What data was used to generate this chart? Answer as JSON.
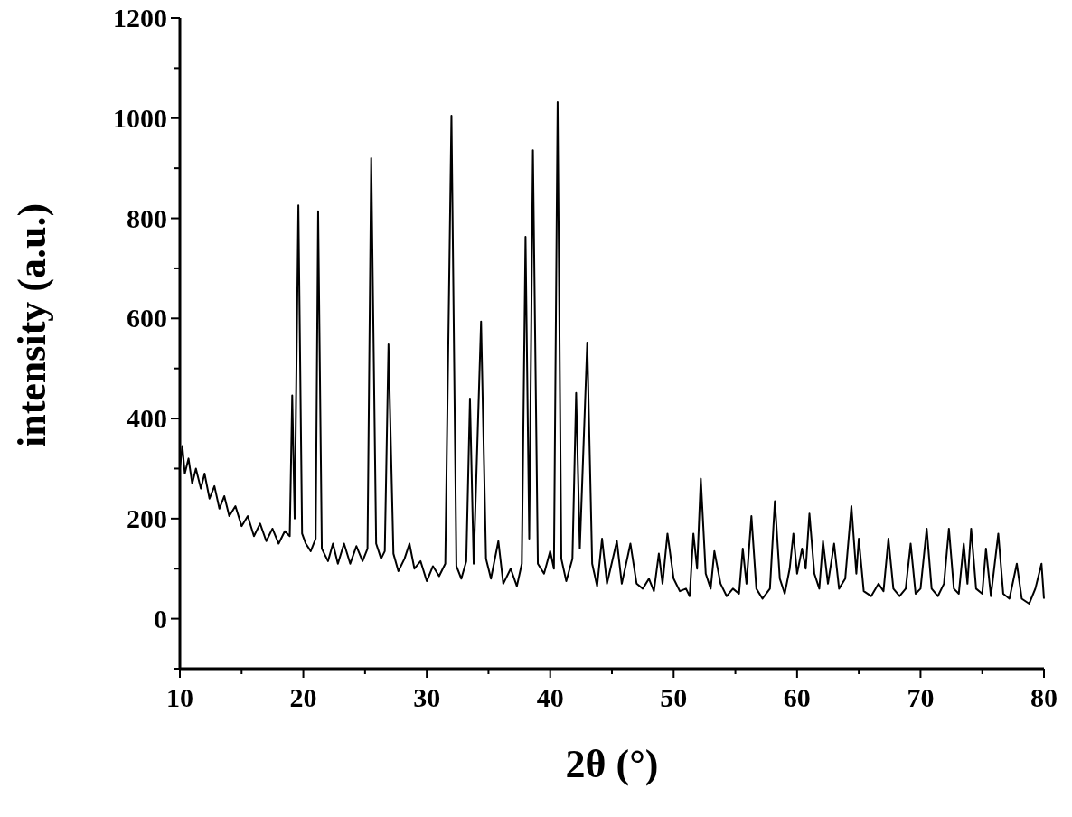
{
  "chart_data": {
    "type": "line",
    "xlabel": "2θ (°)",
    "ylabel": "intensity (a.u.)",
    "xlim": [
      10,
      80
    ],
    "ylim": [
      -100,
      1200
    ],
    "xticks": [
      10,
      {
        "value": 15,
        "label": null
      },
      20,
      {
        "value": 25,
        "label": null
      },
      30,
      {
        "value": 35,
        "label": null
      },
      40,
      {
        "value": 45,
        "label": null
      },
      50,
      {
        "value": 55,
        "label": null
      },
      60,
      {
        "value": 65,
        "label": null
      },
      70,
      {
        "value": 75,
        "label": null
      },
      80
    ],
    "yticks": [
      {
        "value": -100,
        "label": null
      },
      0,
      {
        "value": 100,
        "label": null
      },
      200,
      {
        "value": 300,
        "label": null
      },
      400,
      {
        "value": 500,
        "label": null
      },
      600,
      {
        "value": 700,
        "label": null
      },
      800,
      {
        "value": 900,
        "label": null
      },
      1000,
      {
        "value": 1100,
        "label": null
      },
      1200
    ],
    "grid": false,
    "marker": "none",
    "line_style": "solid",
    "series": [
      {
        "color": "#000000",
        "x": [
          10.0,
          10.2,
          10.4,
          10.7,
          11.0,
          11.3,
          11.7,
          12.0,
          12.4,
          12.8,
          13.2,
          13.6,
          14.0,
          14.5,
          15.0,
          15.5,
          16.0,
          16.5,
          17.0,
          17.5,
          18.0,
          18.5,
          18.9,
          19.1,
          19.3,
          19.6,
          19.9,
          20.2,
          20.6,
          21.0,
          21.2,
          21.5,
          22.0,
          22.4,
          22.8,
          23.3,
          23.8,
          24.3,
          24.8,
          25.2,
          25.5,
          25.9,
          26.3,
          26.6,
          26.9,
          27.3,
          27.7,
          28.2,
          28.6,
          29.0,
          29.5,
          30.0,
          30.5,
          31.0,
          31.5,
          32.0,
          32.4,
          32.8,
          33.2,
          33.5,
          33.8,
          34.4,
          34.8,
          35.2,
          35.8,
          36.2,
          36.8,
          37.3,
          37.7,
          38.0,
          38.3,
          38.6,
          39.0,
          39.5,
          40.0,
          40.3,
          40.6,
          40.9,
          41.3,
          41.8,
          42.1,
          42.4,
          43.0,
          43.4,
          43.8,
          44.2,
          44.6,
          45.4,
          45.8,
          46.5,
          47.0,
          47.5,
          48.0,
          48.4,
          48.8,
          49.1,
          49.5,
          50.0,
          50.5,
          51.0,
          51.3,
          51.6,
          51.9,
          52.2,
          52.6,
          53.0,
          53.3,
          53.8,
          54.3,
          54.8,
          55.3,
          55.6,
          55.9,
          56.3,
          56.7,
          57.2,
          57.8,
          58.2,
          58.6,
          59.0,
          59.4,
          59.7,
          60.0,
          60.4,
          60.7,
          61.0,
          61.4,
          61.8,
          62.1,
          62.5,
          63.0,
          63.4,
          63.9,
          64.4,
          64.8,
          65.0,
          65.4,
          66.0,
          66.6,
          67.0,
          67.4,
          67.8,
          68.3,
          68.8,
          69.2,
          69.6,
          70.0,
          70.5,
          70.9,
          71.4,
          71.9,
          72.3,
          72.7,
          73.1,
          73.5,
          73.8,
          74.1,
          74.5,
          75.0,
          75.3,
          75.7,
          76.3,
          76.7,
          77.2,
          77.8,
          78.2,
          78.8,
          79.3,
          79.8,
          80.0
        ],
        "values": [
          300,
          345,
          290,
          320,
          270,
          300,
          260,
          290,
          240,
          265,
          220,
          245,
          205,
          225,
          185,
          205,
          165,
          190,
          155,
          180,
          150,
          175,
          165,
          446,
          200,
          826,
          170,
          150,
          135,
          160,
          814,
          140,
          115,
          150,
          110,
          150,
          110,
          145,
          115,
          140,
          920,
          150,
          120,
          135,
          548,
          130,
          95,
          120,
          150,
          100,
          115,
          75,
          105,
          85,
          110,
          1005,
          105,
          80,
          115,
          440,
          110,
          594,
          120,
          80,
          155,
          70,
          100,
          65,
          110,
          763,
          160,
          936,
          110,
          90,
          135,
          100,
          1032,
          120,
          75,
          120,
          451,
          140,
          552,
          110,
          65,
          160,
          70,
          155,
          70,
          150,
          70,
          60,
          80,
          55,
          130,
          70,
          170,
          80,
          55,
          60,
          45,
          170,
          100,
          280,
          90,
          60,
          135,
          70,
          45,
          60,
          50,
          140,
          70,
          205,
          60,
          40,
          60,
          235,
          80,
          50,
          100,
          170,
          90,
          140,
          100,
          210,
          90,
          60,
          155,
          70,
          150,
          60,
          80,
          225,
          90,
          160,
          55,
          45,
          70,
          55,
          160,
          60,
          45,
          60,
          150,
          50,
          60,
          180,
          60,
          45,
          70,
          180,
          60,
          50,
          150,
          70,
          180,
          60,
          50,
          140,
          45,
          170,
          50,
          40,
          110,
          40,
          30,
          60,
          110,
          40
        ]
      }
    ]
  }
}
